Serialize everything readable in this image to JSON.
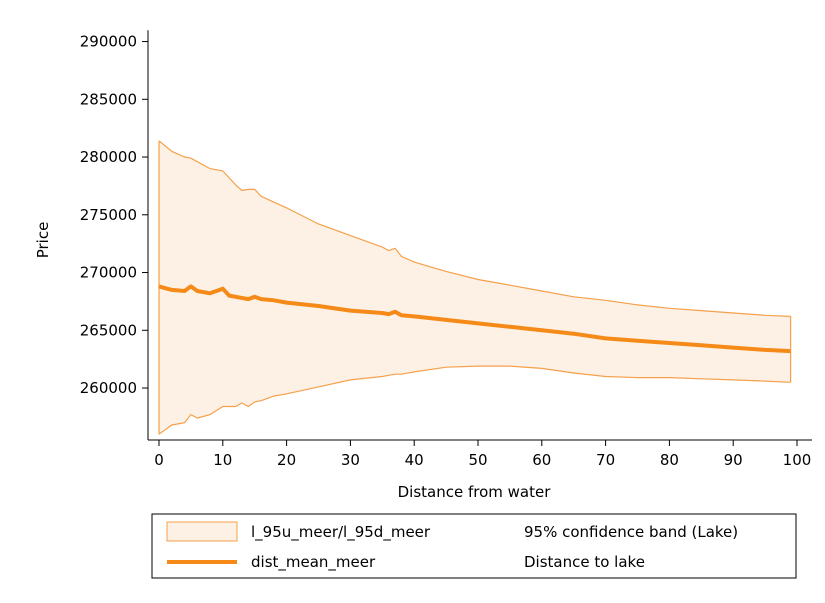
{
  "chart_data": {
    "type": "area",
    "title": "",
    "xlabel": "Distance from water",
    "ylabel": "Price",
    "xlim": [
      0,
      100
    ],
    "ylim": [
      255500,
      291000
    ],
    "xticks": [
      0,
      10,
      20,
      30,
      40,
      50,
      60,
      70,
      80,
      90,
      100
    ],
    "yticks": [
      260000,
      265000,
      270000,
      275000,
      280000,
      285000,
      290000
    ],
    "xtick_labels": [
      "0",
      "10",
      "20",
      "30",
      "40",
      "50",
      "60",
      "70",
      "80",
      "90",
      "100"
    ],
    "ytick_labels": [
      "260000",
      "265000",
      "270000",
      "275000",
      "280000",
      "285000",
      "290000"
    ],
    "grid": false,
    "legend_position": "bottom",
    "colors": {
      "band_fill": "#fdf1e6",
      "band_line": "#f5a04a",
      "mean_line": "#f58a18"
    },
    "series": [
      {
        "name": "l_95u_meer/l_95d_meer",
        "label": "95% confidence band (Lake)",
        "kind": "band",
        "x": [
          0,
          2,
          4,
          5,
          6,
          8,
          10,
          12,
          13,
          14,
          15,
          16,
          18,
          20,
          25,
          30,
          35,
          36,
          37,
          38,
          40,
          45,
          50,
          55,
          60,
          65,
          70,
          75,
          80,
          85,
          90,
          95,
          99
        ],
        "upper": [
          281400,
          280500,
          280000,
          279900,
          279600,
          279000,
          278800,
          277600,
          277100,
          277200,
          277200,
          276600,
          276100,
          275600,
          274200,
          273200,
          272200,
          271900,
          272100,
          271400,
          270900,
          270100,
          269400,
          268900,
          268400,
          267900,
          267600,
          267200,
          266900,
          266700,
          266500,
          266300,
          266200
        ],
        "lower": [
          256000,
          256800,
          257000,
          257700,
          257400,
          257700,
          258400,
          258400,
          258700,
          258400,
          258800,
          258900,
          259300,
          259500,
          260100,
          260700,
          261000,
          261100,
          261200,
          261200,
          261400,
          261800,
          261900,
          261900,
          261700,
          261300,
          261000,
          260900,
          260900,
          260800,
          260700,
          260600,
          260500
        ]
      },
      {
        "name": "dist_mean_meer",
        "label": "Distance to lake",
        "kind": "line",
        "x": [
          0,
          2,
          4,
          5,
          6,
          8,
          10,
          11,
          12,
          14,
          15,
          16,
          18,
          20,
          25,
          30,
          35,
          36,
          37,
          38,
          40,
          45,
          50,
          55,
          60,
          65,
          70,
          75,
          80,
          85,
          90,
          95,
          99
        ],
        "values": [
          268800,
          268500,
          268400,
          268800,
          268400,
          268200,
          268600,
          268000,
          267900,
          267700,
          267900,
          267700,
          267600,
          267400,
          267100,
          266700,
          266500,
          266400,
          266600,
          266300,
          266200,
          265900,
          265600,
          265300,
          265000,
          264700,
          264300,
          264100,
          263900,
          263700,
          263500,
          263300,
          263200
        ]
      }
    ]
  }
}
